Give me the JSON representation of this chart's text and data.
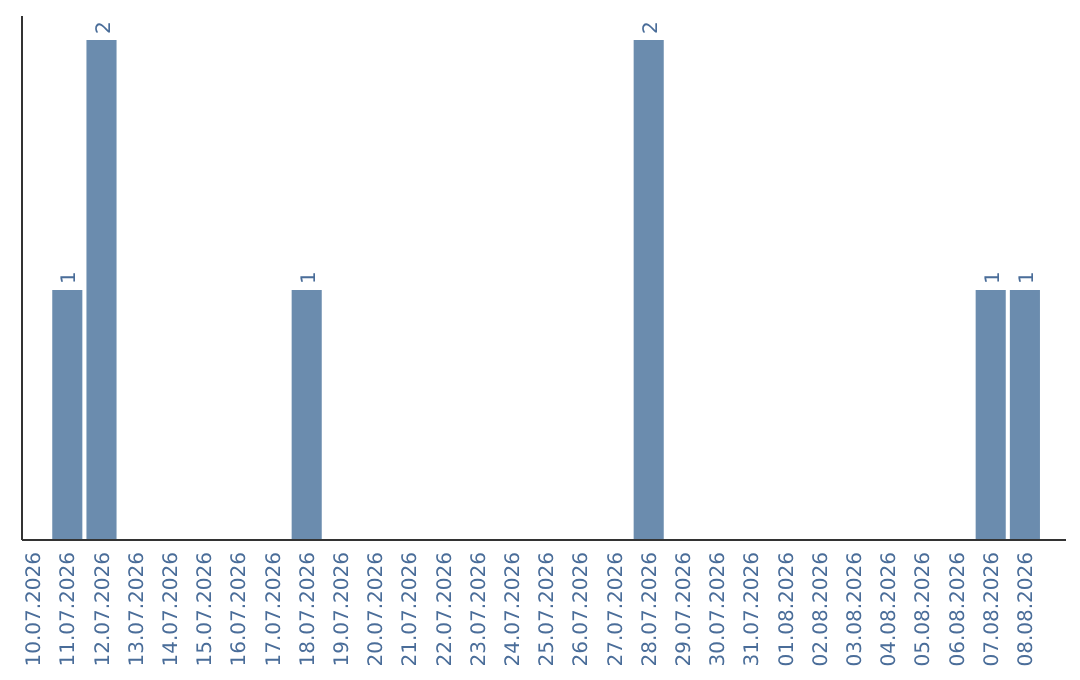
{
  "chart_data": {
    "type": "bar",
    "categories": [
      "10.07.2026",
      "11.07.2026",
      "12.07.2026",
      "13.07.2026",
      "14.07.2026",
      "15.07.2026",
      "16.07.2026",
      "17.07.2026",
      "18.07.2026",
      "19.07.2026",
      "20.07.2026",
      "21.07.2026",
      "22.07.2026",
      "23.07.2026",
      "24.07.2026",
      "25.07.2026",
      "26.07.2026",
      "27.07.2026",
      "28.07.2026",
      "29.07.2026",
      "30.07.2026",
      "31.07.2026",
      "01.08.2026",
      "02.08.2026",
      "03.08.2026",
      "04.08.2026",
      "05.08.2026",
      "06.08.2026",
      "07.08.2026",
      "08.08.2026"
    ],
    "values": [
      0,
      1,
      2,
      0,
      0,
      0,
      0,
      0,
      1,
      0,
      0,
      0,
      0,
      0,
      0,
      0,
      0,
      0,
      2,
      0,
      0,
      0,
      0,
      0,
      0,
      0,
      0,
      0,
      1,
      1
    ],
    "color": "#6b8cae",
    "value_labels": [
      null,
      "1",
      "2",
      null,
      null,
      null,
      null,
      null,
      "1",
      null,
      null,
      null,
      null,
      null,
      null,
      null,
      null,
      null,
      "2",
      null,
      null,
      null,
      null,
      null,
      null,
      null,
      null,
      null,
      "1",
      "1"
    ],
    "tick_labels": "x"
  }
}
